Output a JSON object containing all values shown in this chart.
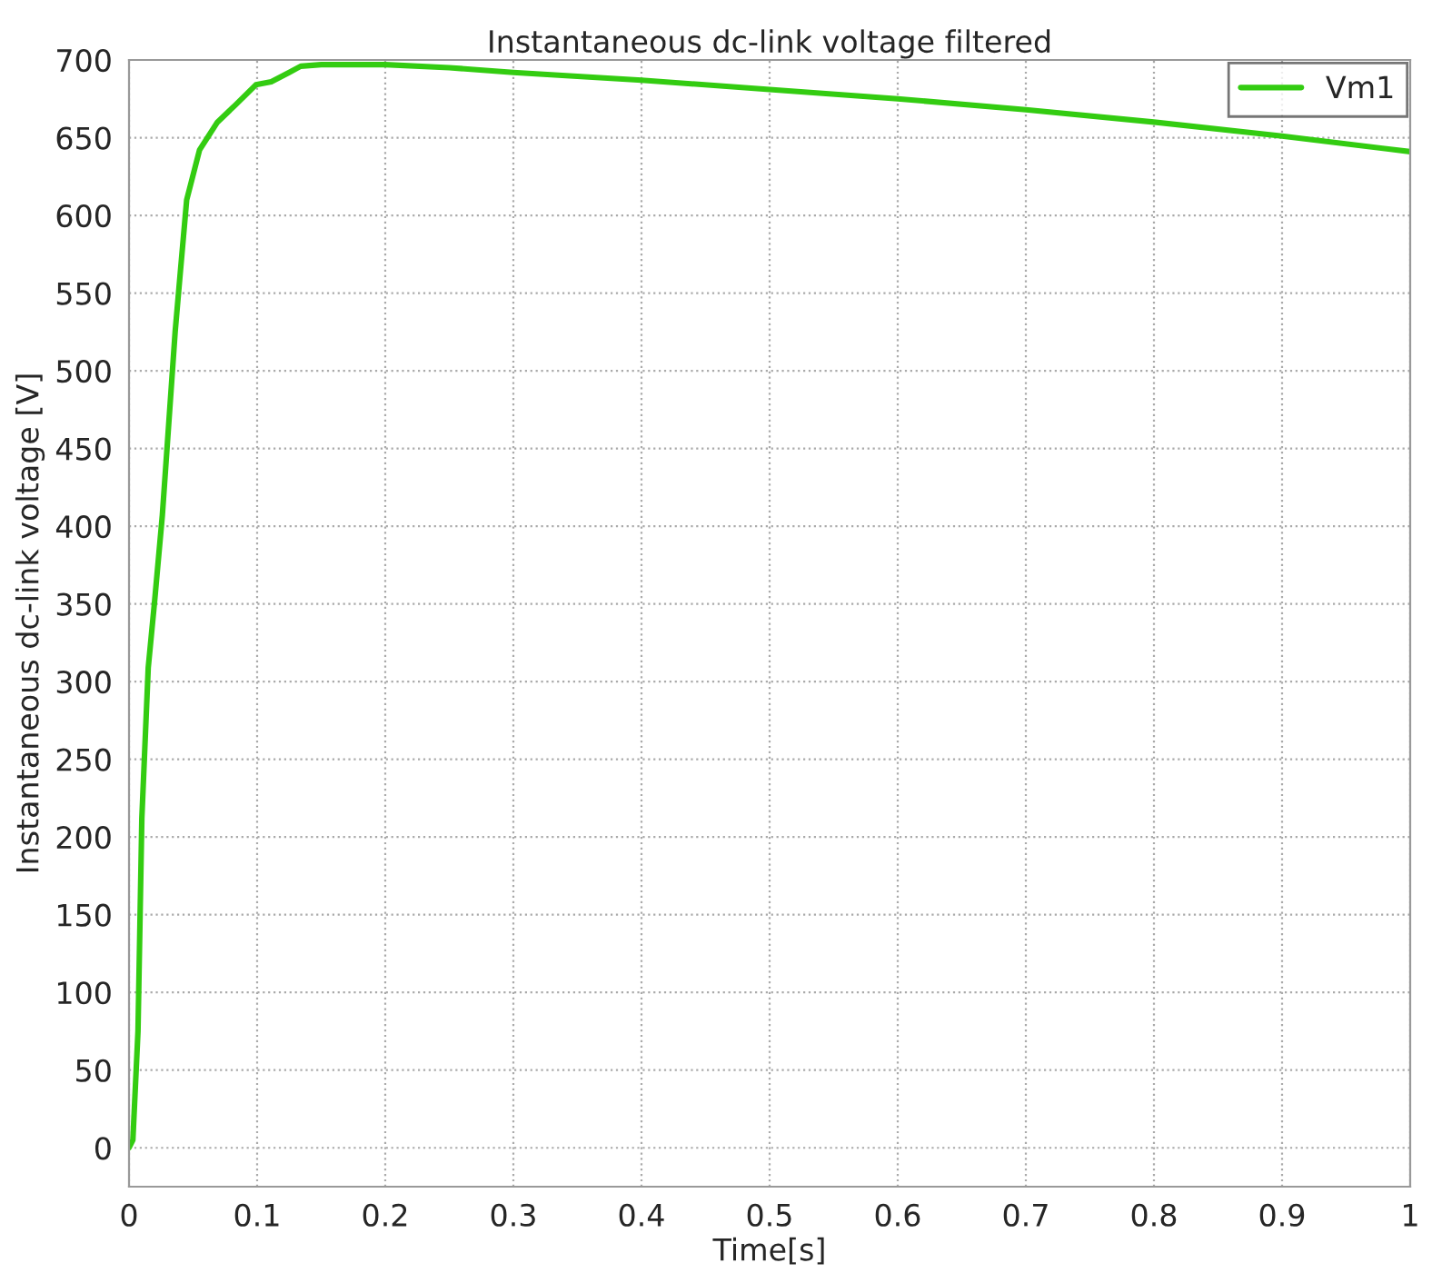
{
  "chart_data": {
    "type": "line",
    "title": "Instantaneous dc-link voltage filtered",
    "xlabel": "Time[s]",
    "ylabel": "Instantaneous dc-link voltage [V]",
    "xlim": [
      0,
      1
    ],
    "xticks": [
      0,
      0.1,
      0.2,
      0.3,
      0.4,
      0.5,
      0.6,
      0.7,
      0.8,
      0.9,
      1
    ],
    "ylim": [
      -25,
      700
    ],
    "yticks": [
      0,
      50,
      100,
      150,
      200,
      250,
      300,
      350,
      400,
      450,
      500,
      550,
      600,
      650,
      700
    ],
    "grid": true,
    "legend": "top right",
    "line_style": "dotted",
    "series": [
      {
        "name": "Vm1",
        "color": "#33cc11",
        "line_style": "solid",
        "x": [
          0,
          0.003,
          0.007,
          0.01,
          0.015,
          0.02,
          0.026,
          0.031,
          0.036,
          0.04,
          0.045,
          0.055,
          0.069,
          0.083,
          0.099,
          0.111,
          0.125,
          0.134,
          0.15,
          0.2,
          0.25,
          0.3,
          0.4,
          0.5,
          0.6,
          0.7,
          0.8,
          0.9,
          1.0
        ],
        "values": [
          0,
          5,
          75,
          212,
          309,
          352,
          407,
          466,
          525,
          563,
          610,
          642,
          660,
          671,
          684,
          686,
          692,
          696,
          697,
          697,
          695,
          692,
          687,
          681,
          675,
          668,
          660,
          651,
          641
        ]
      }
    ]
  }
}
